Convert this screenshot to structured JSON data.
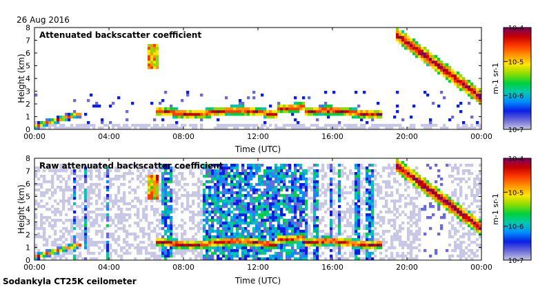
{
  "header": {
    "date": "26 Aug 2016"
  },
  "footer": {
    "instrument": "Sodankyla CT25K ceilometer"
  },
  "colorbar": {
    "stops": [
      "#c8c8e6",
      "#6a6ad8",
      "#0a1ee6",
      "#0090ff",
      "#00c8b0",
      "#00d23c",
      "#8cdc00",
      "#ffe600",
      "#ff9600",
      "#ff3c00",
      "#c80000",
      "#780064"
    ]
  },
  "chart_data": [
    {
      "type": "heatmap",
      "title": "Attenuated backscatter coefficient",
      "xlabel": "Time (UTC)",
      "ylabel": "Height (km)",
      "x_ticks": [
        "00:00",
        "04:00",
        "08:00",
        "12:00",
        "16:00",
        "20:00",
        "00:00"
      ],
      "x_range_hours": [
        0,
        24
      ],
      "y_ticks": [
        "0",
        "1",
        "2",
        "3",
        "4",
        "5",
        "6",
        "7",
        "8"
      ],
      "ylim": [
        0,
        8
      ],
      "colorbar": {
        "label": "m-1 sr-1",
        "scale": "log",
        "ticks": [
          "10-7",
          "10-6",
          "10-5",
          "10-4"
        ],
        "range": [
          1e-07,
          0.0001
        ]
      },
      "features": [
        {
          "name": "boundary layer layer",
          "time_h": [
            0,
            2.5
          ],
          "height_km": [
            0.3,
            1.2
          ]
        },
        {
          "name": "low cloud layer",
          "time_h": [
            6.5,
            18.5
          ],
          "height_km": [
            1.0,
            1.8
          ]
        },
        {
          "name": "descending cloud layer",
          "time_h": [
            19.4,
            24
          ],
          "height_km": [
            7.5,
            2.5
          ]
        }
      ]
    },
    {
      "type": "heatmap",
      "title": "Raw attenuated backscatter coefficient",
      "xlabel": "Time (UTC)",
      "ylabel": "Height (km)",
      "x_ticks": [
        "00:00",
        "04:00",
        "08:00",
        "12:00",
        "16:00",
        "20:00",
        "00:00"
      ],
      "x_range_hours": [
        0,
        24
      ],
      "y_ticks": [
        "0",
        "1",
        "2",
        "3",
        "4",
        "5",
        "6",
        "7",
        "8"
      ],
      "ylim": [
        0,
        8
      ],
      "colorbar": {
        "label": "m-1 sr-1",
        "scale": "log",
        "ticks": [
          "10-7",
          "10-6",
          "10-5",
          "10-4"
        ],
        "range": [
          1e-07,
          0.0001
        ]
      },
      "features": [
        {
          "name": "noise curtains",
          "time_h": [
            0,
            24
          ],
          "height_km": [
            0,
            7.5
          ]
        },
        {
          "name": "low cloud layer",
          "time_h": [
            6.5,
            18.5
          ],
          "height_km": [
            1.0,
            1.8
          ]
        },
        {
          "name": "descending cloud layer",
          "time_h": [
            19.4,
            24
          ],
          "height_km": [
            7.5,
            2.5
          ]
        }
      ]
    }
  ]
}
